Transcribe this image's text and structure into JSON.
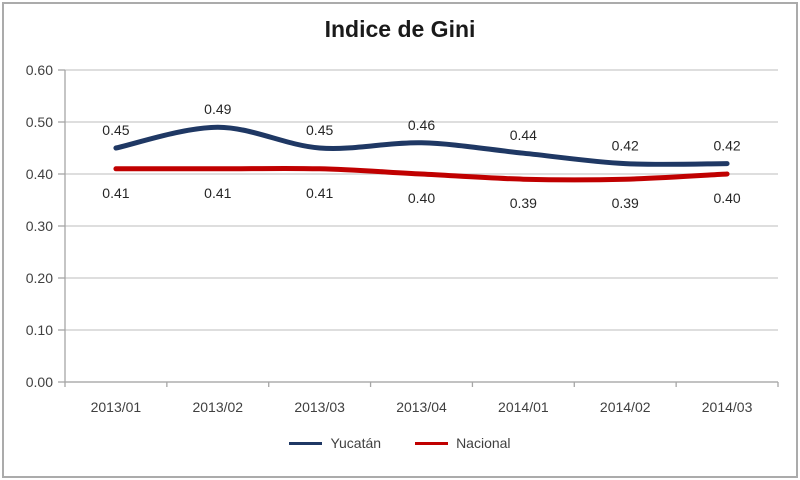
{
  "chart_data": {
    "type": "line",
    "title": "Indice de Gini",
    "categories": [
      "2013/01",
      "2013/02",
      "2013/03",
      "2013/04",
      "2014/01",
      "2014/02",
      "2014/03"
    ],
    "series": [
      {
        "name": "Yucatán",
        "color": "#1F3864",
        "values": [
          0.45,
          0.49,
          0.45,
          0.46,
          0.44,
          0.42,
          0.42
        ],
        "data_labels": [
          "0.45",
          "0.49",
          "0.45",
          "0.46",
          "0.44",
          "0.42",
          "0.42"
        ],
        "label_position": "above"
      },
      {
        "name": "Nacional",
        "color": "#C00000",
        "values": [
          0.41,
          0.41,
          0.41,
          0.4,
          0.39,
          0.39,
          0.4
        ],
        "data_labels": [
          "0.41",
          "0.41",
          "0.41",
          "0.40",
          "0.39",
          "0.39",
          "0.40"
        ],
        "label_position": "below"
      }
    ],
    "y_ticks": [
      "0.00",
      "0.10",
      "0.20",
      "0.30",
      "0.40",
      "0.50",
      "0.60"
    ],
    "ylim": [
      0,
      0.6
    ],
    "y_tick_step": 0.1,
    "grid": true,
    "smoothed_lines": true,
    "data_labels_shown": true,
    "legend_position": "bottom"
  },
  "colors": {
    "gridline": "#C9C9C9",
    "axis": "#A6A6A6",
    "tick_label": "#404040",
    "data_label": "#262626",
    "title_text": "#1A1A1A",
    "legend_text": "#404040",
    "border": "#ABABAB",
    "background": "#FFFFFF"
  }
}
